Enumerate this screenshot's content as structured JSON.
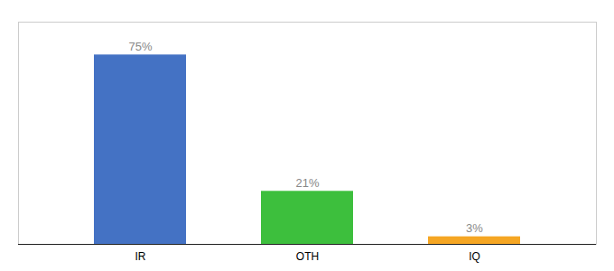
{
  "chart_data": {
    "type": "bar",
    "categories": [
      "IR",
      "OTH",
      "IQ"
    ],
    "values": [
      75,
      21,
      3
    ],
    "value_labels": [
      "75%",
      "21%",
      "3%"
    ],
    "colors": [
      "#4472c4",
      "#3dbf3d",
      "#f5a623"
    ],
    "ylim": [
      0,
      88
    ],
    "data_labels": true,
    "tick_labels": "x"
  }
}
